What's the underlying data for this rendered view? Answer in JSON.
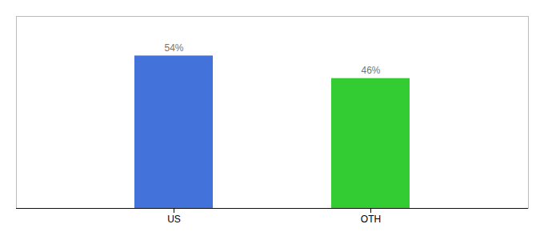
{
  "chart_data": {
    "type": "bar",
    "categories": [
      "US",
      "OTH"
    ],
    "values": [
      54,
      46
    ],
    "value_labels": [
      "54%",
      "46%"
    ],
    "colors": [
      "#4472db",
      "#33cc33"
    ],
    "ylim": [
      0,
      68
    ],
    "data_labels": true,
    "tick_labels": "x",
    "grid": false
  }
}
